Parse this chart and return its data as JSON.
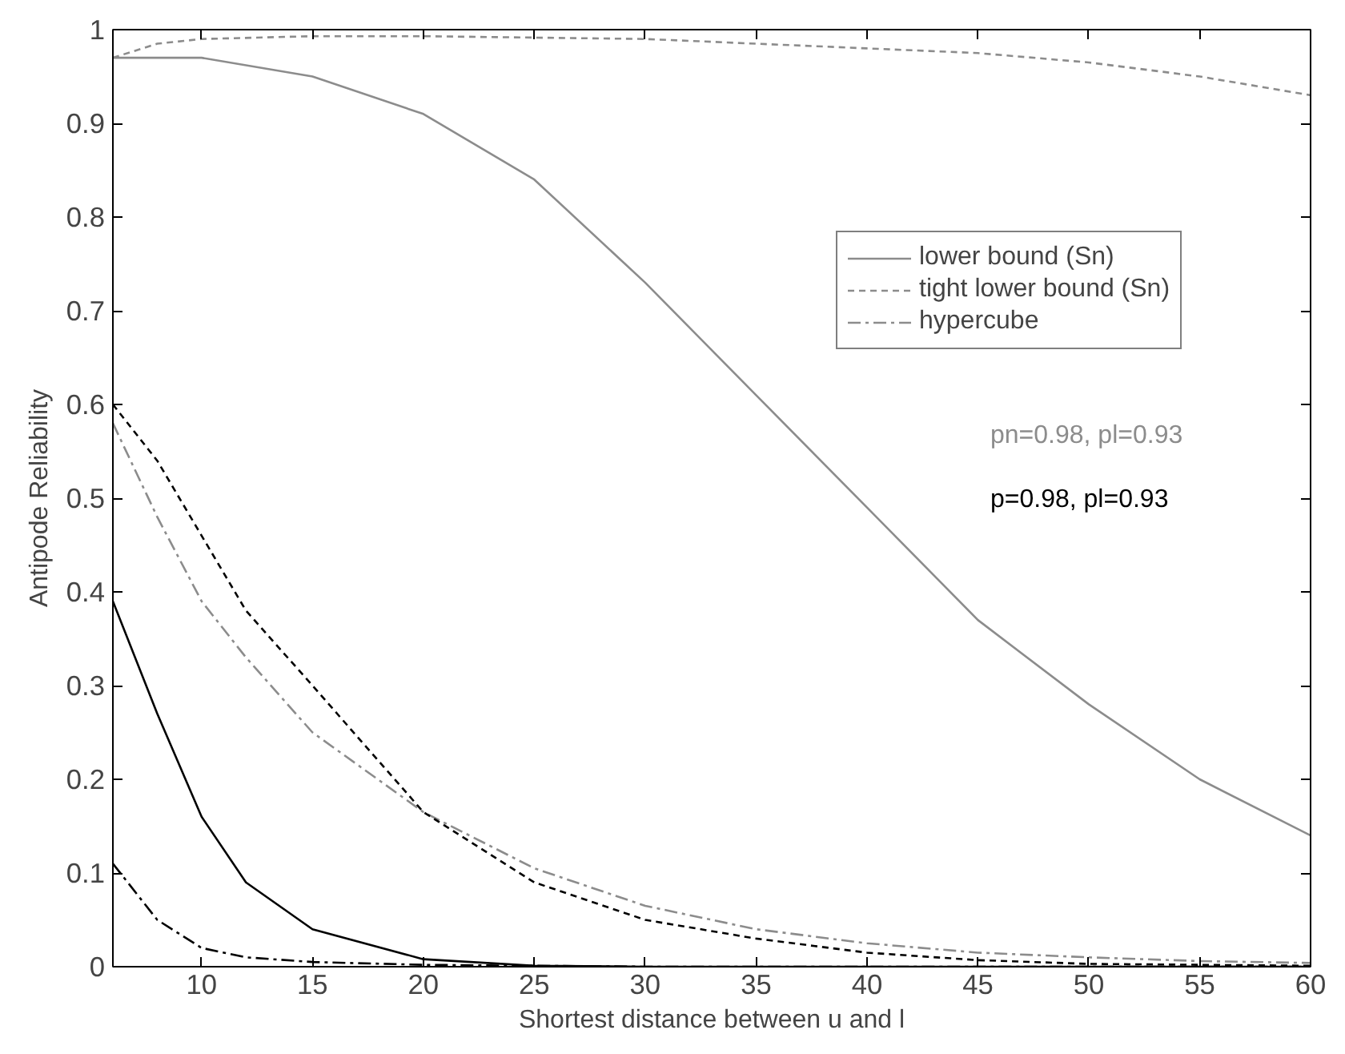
{
  "chart_data": {
    "type": "line",
    "xlabel": "Shortest distance between u and l",
    "ylabel": "Antipode Reliability",
    "xlim": [
      6,
      60
    ],
    "ylim": [
      0,
      1
    ],
    "xticks": [
      10,
      15,
      20,
      25,
      30,
      35,
      40,
      45,
      50,
      55,
      60
    ],
    "yticks": [
      0,
      0.1,
      0.2,
      0.3,
      0.4,
      0.5,
      0.6,
      0.7,
      0.8,
      0.9,
      1
    ],
    "grid": false,
    "legend": "top right",
    "marker": "none",
    "annotations": [
      "pn=0.98, pl=0.93",
      "p=0.98, pl=0.93"
    ],
    "series": [
      {
        "name": "lower bound (Sn)",
        "color": "#8c8c8c",
        "line_style": "solid",
        "x": [
          6,
          10,
          15,
          20,
          25,
          30,
          35,
          40,
          45,
          50,
          55,
          60
        ],
        "values": [
          0.97,
          0.97,
          0.95,
          0.91,
          0.84,
          0.73,
          0.61,
          0.49,
          0.37,
          0.28,
          0.2,
          0.14
        ]
      },
      {
        "name": "tight lower bound (Sn)",
        "color": "#8c8c8c",
        "line_style": "dashed",
        "x": [
          6,
          8,
          10,
          15,
          20,
          30,
          35,
          40,
          45,
          50,
          55,
          60
        ],
        "values": [
          0.97,
          0.985,
          0.99,
          0.993,
          0.993,
          0.99,
          0.985,
          0.98,
          0.975,
          0.965,
          0.95,
          0.93
        ]
      },
      {
        "name": "hypercube",
        "color": "#8c8c8c",
        "line_style": "dashdot",
        "x": [
          6,
          8,
          10,
          12,
          15,
          20,
          25,
          30,
          35,
          40,
          45,
          50,
          55,
          60
        ],
        "values": [
          0.58,
          0.48,
          0.39,
          0.33,
          0.25,
          0.165,
          0.105,
          0.065,
          0.04,
          0.025,
          0.015,
          0.01,
          0.006,
          0.004
        ]
      },
      {
        "color": "#000000",
        "line_style": "solid",
        "x": [
          6,
          8,
          10,
          12,
          15,
          20,
          25,
          30,
          60
        ],
        "values": [
          0.39,
          0.27,
          0.16,
          0.09,
          0.04,
          0.008,
          0.001,
          0,
          0
        ]
      },
      {
        "color": "#000000",
        "line_style": "dashed",
        "x": [
          6,
          8,
          10,
          12,
          15,
          20,
          25,
          30,
          35,
          40,
          45,
          50,
          60
        ],
        "values": [
          0.6,
          0.54,
          0.46,
          0.38,
          0.3,
          0.165,
          0.09,
          0.05,
          0.03,
          0.015,
          0.007,
          0.003,
          0.001
        ]
      },
      {
        "color": "#000000",
        "line_style": "dashdot",
        "x": [
          6,
          8,
          10,
          12,
          15,
          20,
          30,
          60
        ],
        "values": [
          0.11,
          0.05,
          0.02,
          0.01,
          0.005,
          0.002,
          0,
          0
        ]
      }
    ]
  }
}
